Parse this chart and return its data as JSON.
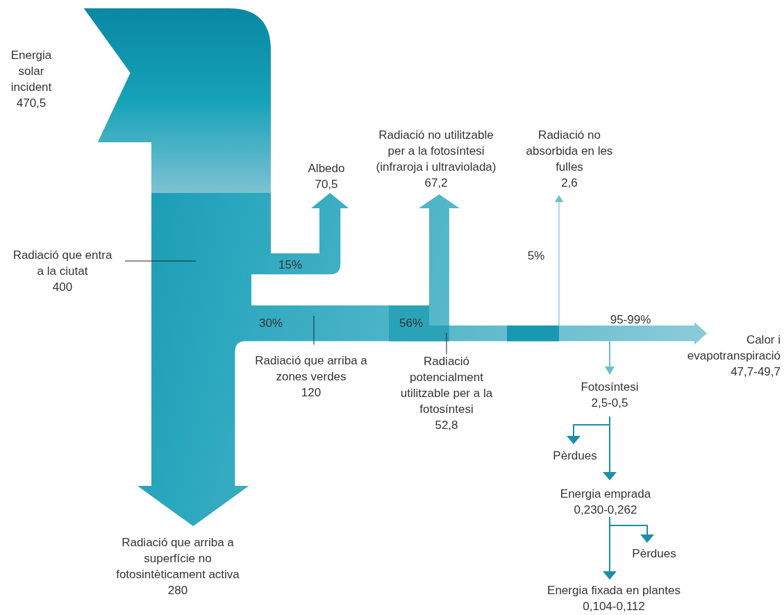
{
  "chart_data": {
    "type": "other",
    "categories": [
      "Energia\nsolar\nincident",
      "Albedo",
      "Radiació no utilitzable\nper a la fotosíntesi\n(infraroja i ultraviolada)",
      "Radiació no\nabsorbida en les\nfulles",
      "Radiació que entra\na la ciutat",
      "Radiació que arriba a\nzones verdes",
      "Radiació\npotencialment\nutilitzable per a la\nfotosíntesi",
      "Calor i\nevapotranspiració",
      "Fotosíntesi",
      "Pèrdues",
      "Energia emprada",
      "Pèrdues",
      "Radiació que arriba a\nsuperfície no\nfotosintèticament activa",
      "Energia fixada en plantes"
    ],
    "values": [
      470.5,
      70.5,
      67.2,
      2.6,
      400,
      120,
      52.8,
      null,
      null,
      null,
      null,
      null,
      280,
      null
    ],
    "value_labels": [
      "470,5",
      "70,5",
      "67,2",
      "2,6",
      "400",
      "120",
      "52,8",
      "47,7-49,7",
      "2,5-0,5",
      null,
      "0,230-0,262",
      null,
      "280",
      "0,104-0,112"
    ],
    "annotations": [
      "15%",
      "5%",
      "30%",
      "56%",
      "95-99%"
    ]
  }
}
